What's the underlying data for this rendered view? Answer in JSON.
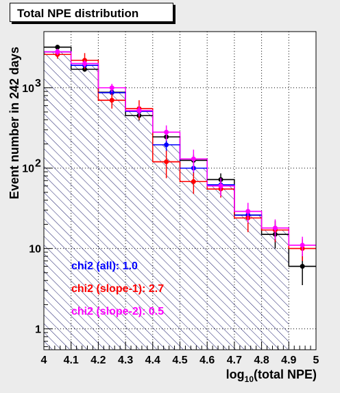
{
  "chart_data": {
    "type": "line",
    "title": "Total NPE distribution",
    "xlabel": "log10(total NPE)",
    "xlabel_main": "log",
    "xlabel_sub": "10",
    "xlabel_rest": "(total NPE)",
    "ylabel": "Event number in 242 days",
    "xlim": [
      4,
      5
    ],
    "ylim": [
      0.55,
      5000
    ],
    "y_scale": "log",
    "grid": true,
    "x_ticks": [
      "4",
      "4.1",
      "4.2",
      "4.3",
      "4.4",
      "4.5",
      "4.6",
      "4.7",
      "4.8",
      "4.9",
      "5"
    ],
    "y_ticks": [
      {
        "value": 1,
        "label": "1"
      },
      {
        "value": 10,
        "label": "10"
      },
      {
        "value": 100,
        "label": "10",
        "exp": "2"
      },
      {
        "value": 1000,
        "label": "10",
        "exp": "3"
      }
    ],
    "bin_edges": [
      4,
      4.1,
      4.2,
      4.3,
      4.4,
      4.5,
      4.6,
      4.7,
      4.8,
      4.9,
      5
    ],
    "series": [
      {
        "color": "#000000",
        "kind": "hist-points",
        "values": [
          3200,
          1700,
          880,
          450,
          245,
          125,
          72,
          26,
          15,
          6
        ],
        "errors_low": [
          150,
          120,
          80,
          60,
          40,
          22,
          14,
          8,
          5,
          2.5
        ],
        "errors_high": [
          150,
          120,
          80,
          60,
          40,
          22,
          14,
          8,
          5,
          2.5
        ]
      },
      {
        "color": "#0000ff",
        "kind": "hist-points",
        "hatched": true,
        "values": [
          2800,
          1900,
          870,
          510,
          195,
          100,
          62,
          26,
          17,
          0
        ],
        "errors_low": [
          130,
          110,
          75,
          55,
          35,
          20,
          12,
          8,
          5,
          0
        ],
        "errors_high": [
          130,
          110,
          75,
          55,
          35,
          20,
          12,
          8,
          5,
          0
        ]
      },
      {
        "color": "#ff0000",
        "kind": "hist-points",
        "values": [
          2600,
          2200,
          700,
          550,
          120,
          68,
          55,
          24,
          17,
          10
        ],
        "errors_low": [
          300,
          500,
          150,
          150,
          45,
          20,
          12,
          8,
          5,
          3
        ],
        "errors_high": [
          300,
          500,
          150,
          150,
          45,
          20,
          12,
          8,
          5,
          3
        ]
      },
      {
        "color": "#ff00ff",
        "kind": "hist-points",
        "values": [
          2800,
          2000,
          1000,
          520,
          280,
          130,
          60,
          29,
          18,
          11
        ],
        "errors_low": [
          250,
          200,
          120,
          80,
          60,
          40,
          15,
          8,
          5,
          3
        ],
        "errors_high": [
          250,
          200,
          120,
          80,
          60,
          40,
          15,
          8,
          5,
          3
        ]
      }
    ],
    "annotations": [
      {
        "text": "chi2 (all): 1.0",
        "color": "#0000ff"
      },
      {
        "text": "chi2 (slope-1): 2.7",
        "color": "#ff0000"
      },
      {
        "text": "chi2 (slope-2): 0.5",
        "color": "#ff00ff"
      }
    ]
  }
}
